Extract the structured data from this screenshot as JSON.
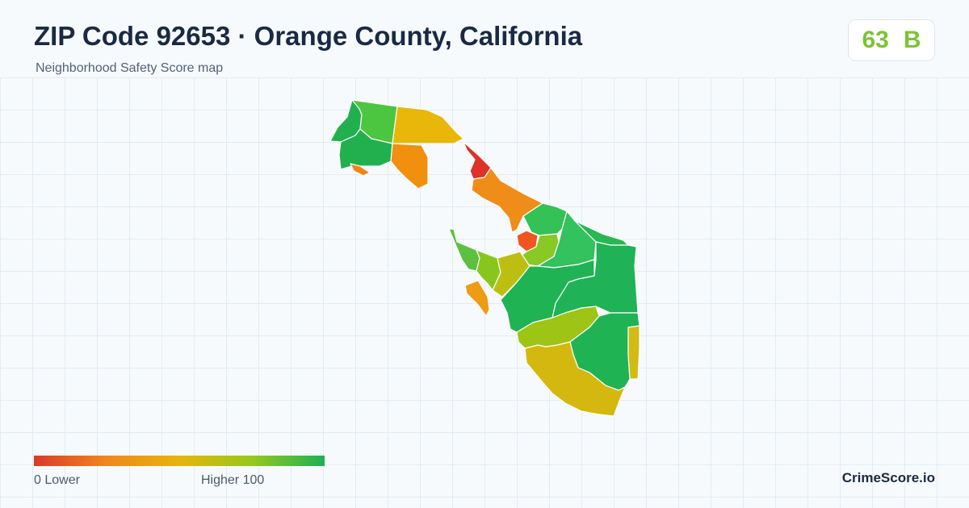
{
  "header": {
    "title": "ZIP Code 92653 · Orange County, California",
    "subtitle": "Neighborhood Safety Score map"
  },
  "score": {
    "value": "63",
    "grade": "B",
    "color": "#7cc334"
  },
  "legend": {
    "min_label": "0  Lower",
    "max_label": "Higher  100",
    "colors": [
      "#d93a2b",
      "#f0871e",
      "#e7b40e",
      "#96c81e",
      "#1eb055"
    ]
  },
  "brand": "CrimeScore.io",
  "map": {
    "regions": [
      {
        "name": "north-west-dark-green",
        "color": "#22b04f"
      },
      {
        "name": "north-green",
        "color": "#4cc540"
      },
      {
        "name": "north-yellow",
        "color": "#e9b70a"
      },
      {
        "name": "west-coastal-green",
        "color": "#22b04f"
      },
      {
        "name": "west-small-orange",
        "color": "#f08418"
      },
      {
        "name": "north-orange",
        "color": "#f0900e"
      },
      {
        "name": "red-strip",
        "color": "#de3129"
      },
      {
        "name": "orange-belt",
        "color": "#f08c18"
      },
      {
        "name": "central-north-green",
        "color": "#34c257"
      },
      {
        "name": "red-orange-spot",
        "color": "#ef5520"
      },
      {
        "name": "lime-area",
        "color": "#88c924"
      },
      {
        "name": "east-mid-green",
        "color": "#33c25e"
      },
      {
        "name": "east-upper-green",
        "color": "#28b752"
      },
      {
        "name": "east-large-green",
        "color": "#20b256"
      },
      {
        "name": "south-west-green",
        "color": "#5cc040"
      },
      {
        "name": "south-west-lime",
        "color": "#88c61e"
      },
      {
        "name": "west-orange-bit",
        "color": "#ee9c14"
      },
      {
        "name": "olive-yellow",
        "color": "#bcbf12"
      },
      {
        "name": "central-green",
        "color": "#20b354"
      },
      {
        "name": "south-lime",
        "color": "#9ec416"
      },
      {
        "name": "south-east-green",
        "color": "#20b354"
      },
      {
        "name": "east-strip-yellow",
        "color": "#d2bb12"
      },
      {
        "name": "south-yellow",
        "color": "#d5b80f"
      }
    ]
  }
}
